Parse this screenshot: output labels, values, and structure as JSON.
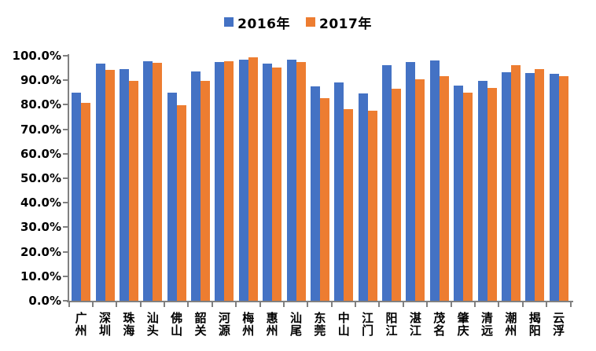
{
  "legend": {
    "items": [
      {
        "label": "2016年",
        "color": "#4472C4"
      },
      {
        "label": "2017年",
        "color": "#ED7D31"
      }
    ]
  },
  "chart_data": {
    "type": "bar",
    "title": "",
    "xlabel": "",
    "ylabel": "",
    "grid": false,
    "legend_position": "top-center",
    "bar_orientation": "vertical",
    "ylim": [
      0,
      100
    ],
    "ytick_labels": [
      "100.0%",
      "90.0%",
      "80.0%",
      "70.0%",
      "60.0%",
      "50.0%",
      "40.0%",
      "30.0%",
      "20.0%",
      "10.0%",
      "0.0%"
    ],
    "categories": [
      "广州",
      "深圳",
      "珠海",
      "汕头",
      "佛山",
      "韶关",
      "河源",
      "梅州",
      "惠州",
      "汕尾",
      "东莞",
      "中山",
      "江门",
      "阳江",
      "湛江",
      "茂名",
      "肇庆",
      "清远",
      "潮州",
      "揭阳",
      "云浮"
    ],
    "series": [
      {
        "name": "2016年",
        "color": "#4472C4",
        "values": [
          84.8,
          96.9,
          94.6,
          97.7,
          84.8,
          93.5,
          97.5,
          98.3,
          96.9,
          98.4,
          87.4,
          89.0,
          84.6,
          96.1,
          97.5,
          98.0,
          87.8,
          89.7,
          93.3,
          93.1,
          92.7
        ]
      },
      {
        "name": "2017年",
        "color": "#ED7D31",
        "values": [
          80.7,
          94.1,
          89.6,
          97.0,
          79.9,
          89.8,
          97.9,
          99.5,
          95.2,
          97.3,
          82.6,
          78.2,
          77.5,
          86.7,
          90.3,
          91.8,
          84.9,
          86.9,
          96.1,
          94.5,
          91.8
        ]
      }
    ]
  }
}
